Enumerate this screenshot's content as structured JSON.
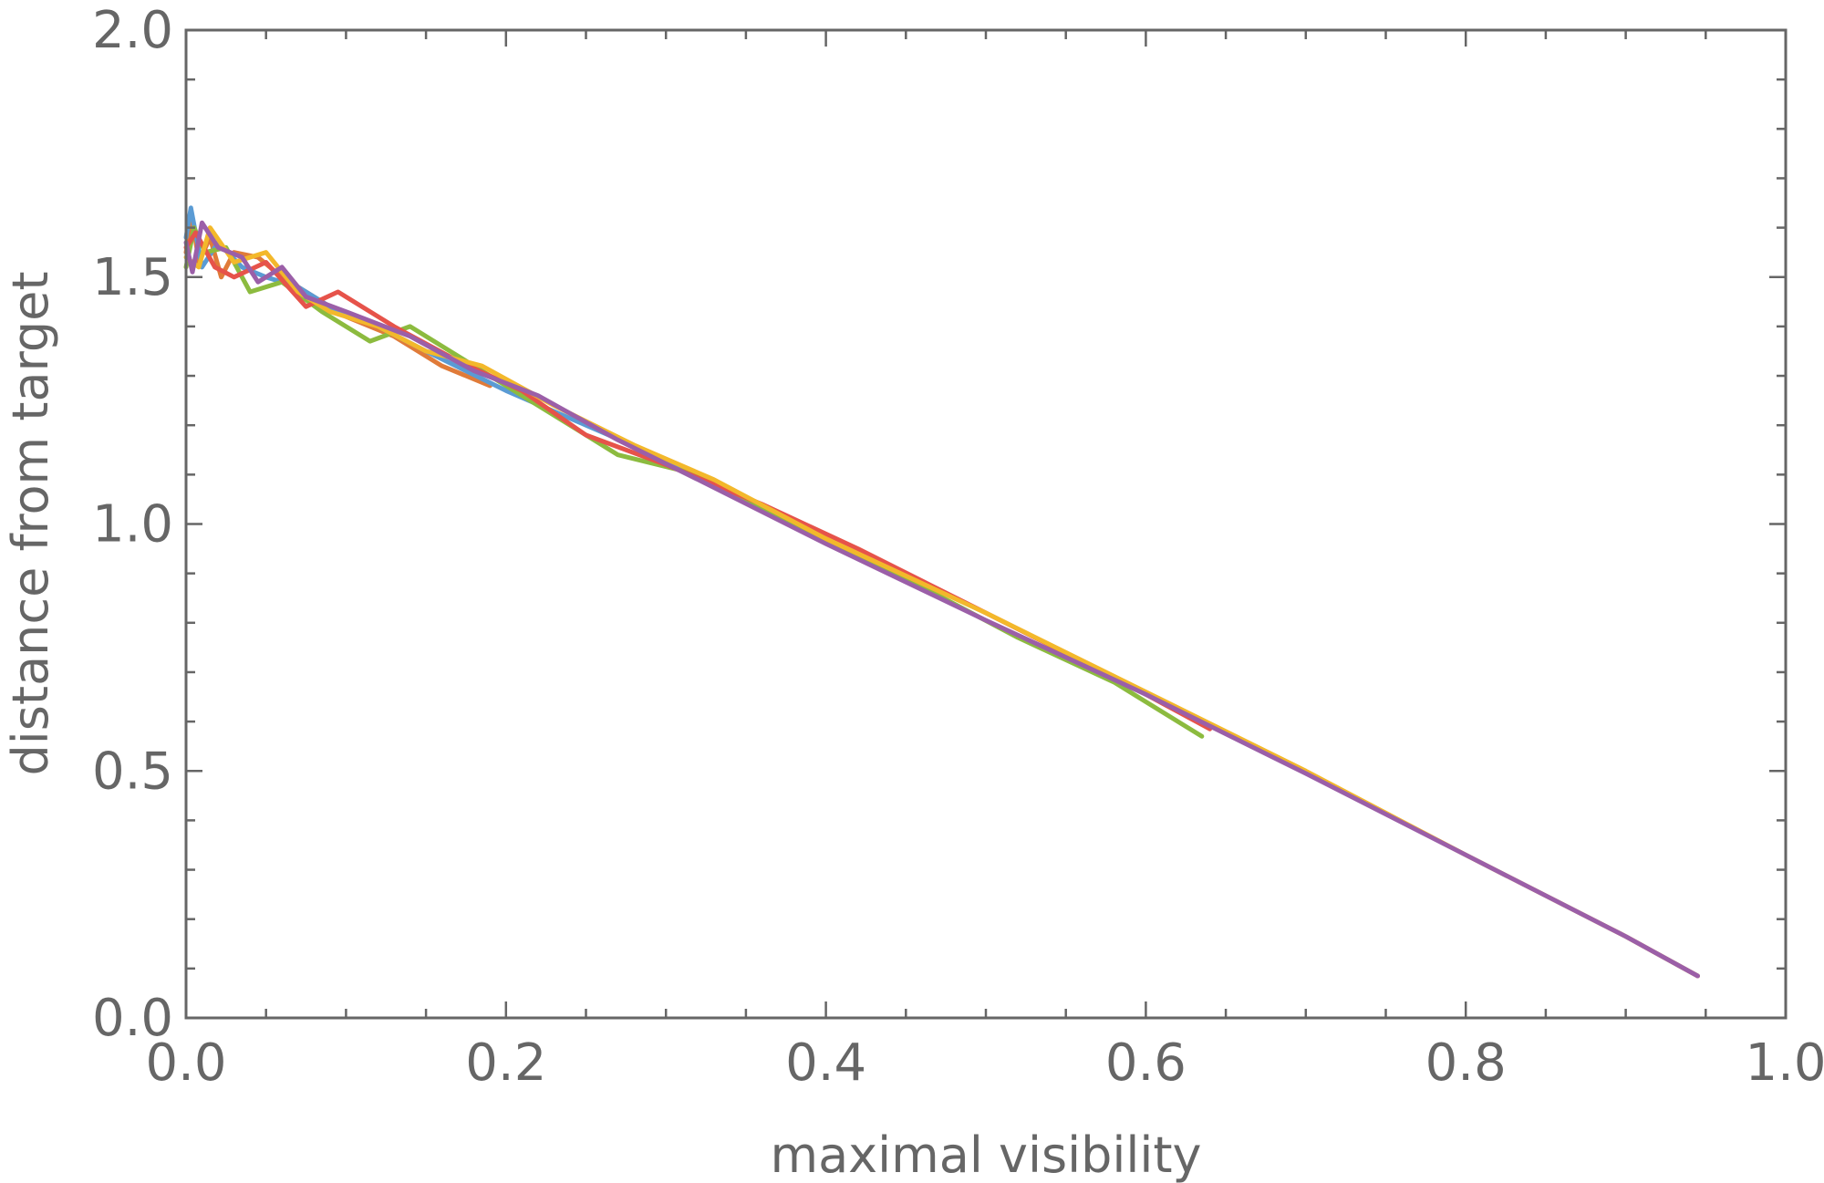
{
  "chart_data": {
    "type": "line",
    "title": "",
    "xlabel": "maximal visibility",
    "ylabel": "distance from target",
    "xlim": [
      0.0,
      1.0
    ],
    "ylim": [
      0.0,
      2.0
    ],
    "x_ticks": [
      "0.0",
      "0.2",
      "0.4",
      "0.6",
      "0.8",
      "1.0"
    ],
    "y_ticks": [
      "0.0",
      "0.5",
      "1.0",
      "1.5",
      "2.0"
    ],
    "x_tick_values": [
      0.0,
      0.2,
      0.4,
      0.6,
      0.8,
      1.0
    ],
    "y_tick_values": [
      0.0,
      0.5,
      1.0,
      1.5,
      2.0
    ],
    "x_minor_step": 0.05,
    "y_minor_step": 0.1,
    "grid": false,
    "legend": "none",
    "series": [
      {
        "color": "#e07b39",
        "points": [
          [
            0.0,
            1.55
          ],
          [
            0.004,
            1.62
          ],
          [
            0.008,
            1.53
          ],
          [
            0.015,
            1.58
          ],
          [
            0.022,
            1.5
          ],
          [
            0.03,
            1.55
          ],
          [
            0.045,
            1.54
          ],
          [
            0.06,
            1.5
          ],
          [
            0.075,
            1.47
          ],
          [
            0.1,
            1.42
          ],
          [
            0.13,
            1.38
          ],
          [
            0.16,
            1.32
          ],
          [
            0.19,
            1.28
          ]
        ]
      },
      {
        "color": "#5a9bd4",
        "points": [
          [
            0.0,
            1.58
          ],
          [
            0.003,
            1.64
          ],
          [
            0.01,
            1.52
          ],
          [
            0.02,
            1.57
          ],
          [
            0.035,
            1.52
          ],
          [
            0.05,
            1.5
          ],
          [
            0.07,
            1.48
          ],
          [
            0.09,
            1.44
          ],
          [
            0.12,
            1.4
          ],
          [
            0.15,
            1.35
          ],
          [
            0.2,
            1.27
          ],
          [
            0.25,
            1.2
          ],
          [
            0.3,
            1.13
          ],
          [
            0.35,
            1.05
          ]
        ]
      },
      {
        "color": "#8cbb3f",
        "points": [
          [
            0.0,
            1.52
          ],
          [
            0.005,
            1.6
          ],
          [
            0.012,
            1.55
          ],
          [
            0.025,
            1.56
          ],
          [
            0.04,
            1.47
          ],
          [
            0.06,
            1.49
          ],
          [
            0.085,
            1.43
          ],
          [
            0.115,
            1.37
          ],
          [
            0.14,
            1.4
          ],
          [
            0.18,
            1.32
          ],
          [
            0.22,
            1.24
          ],
          [
            0.27,
            1.14
          ],
          [
            0.32,
            1.1
          ],
          [
            0.38,
            1.0
          ],
          [
            0.45,
            0.89
          ],
          [
            0.52,
            0.77
          ],
          [
            0.58,
            0.68
          ],
          [
            0.635,
            0.57
          ]
        ]
      },
      {
        "color": "#e6534a",
        "points": [
          [
            0.0,
            1.56
          ],
          [
            0.006,
            1.59
          ],
          [
            0.018,
            1.52
          ],
          [
            0.03,
            1.5
          ],
          [
            0.05,
            1.53
          ],
          [
            0.075,
            1.44
          ],
          [
            0.095,
            1.47
          ],
          [
            0.13,
            1.4
          ],
          [
            0.17,
            1.33
          ],
          [
            0.21,
            1.27
          ],
          [
            0.25,
            1.18
          ],
          [
            0.3,
            1.12
          ],
          [
            0.36,
            1.04
          ],
          [
            0.42,
            0.95
          ],
          [
            0.5,
            0.82
          ],
          [
            0.58,
            0.69
          ],
          [
            0.64,
            0.585
          ]
        ]
      },
      {
        "color": "#f3b82b",
        "points": [
          [
            0.0,
            1.54
          ],
          [
            0.008,
            1.52
          ],
          [
            0.015,
            1.6
          ],
          [
            0.03,
            1.53
          ],
          [
            0.05,
            1.55
          ],
          [
            0.07,
            1.47
          ],
          [
            0.09,
            1.43
          ],
          [
            0.12,
            1.4
          ],
          [
            0.15,
            1.35
          ],
          [
            0.185,
            1.32
          ],
          [
            0.23,
            1.24
          ],
          [
            0.28,
            1.16
          ],
          [
            0.33,
            1.09
          ],
          [
            0.4,
            0.97
          ],
          [
            0.5,
            0.82
          ],
          [
            0.6,
            0.66
          ],
          [
            0.7,
            0.5
          ],
          [
            0.8,
            0.33
          ],
          [
            0.9,
            0.165
          ],
          [
            0.945,
            0.085
          ]
        ]
      },
      {
        "color": "#9b5fa8",
        "points": [
          [
            0.0,
            1.57
          ],
          [
            0.004,
            1.51
          ],
          [
            0.01,
            1.61
          ],
          [
            0.02,
            1.56
          ],
          [
            0.035,
            1.54
          ],
          [
            0.045,
            1.49
          ],
          [
            0.06,
            1.52
          ],
          [
            0.075,
            1.46
          ],
          [
            0.1,
            1.43
          ],
          [
            0.14,
            1.38
          ],
          [
            0.18,
            1.31
          ],
          [
            0.22,
            1.26
          ],
          [
            0.27,
            1.17
          ],
          [
            0.32,
            1.09
          ],
          [
            0.4,
            0.96
          ],
          [
            0.5,
            0.805
          ],
          [
            0.6,
            0.655
          ],
          [
            0.7,
            0.495
          ],
          [
            0.8,
            0.33
          ],
          [
            0.9,
            0.165
          ],
          [
            0.945,
            0.085
          ]
        ]
      }
    ]
  }
}
